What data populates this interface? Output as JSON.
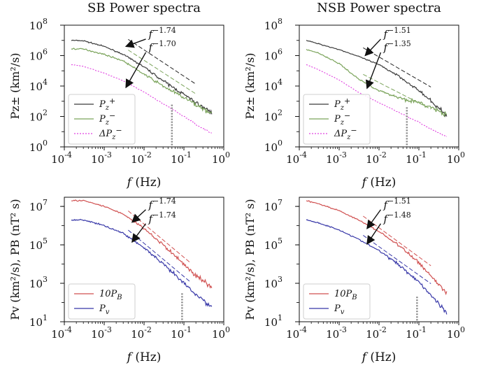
{
  "figure": {
    "colors": {
      "pplus": "#3a3a3a",
      "pminus": "#7aa35a",
      "dpminus": "#e040e0",
      "pb": "#d05050",
      "pv": "#3838a8",
      "axis": "#111111"
    }
  },
  "chart_data": [
    {
      "type": "line",
      "id": "sb-pz",
      "title": "SB Power spectra",
      "xlabel_var": "f",
      "xlabel_unit": "(Hz)",
      "ylabel": "Pz± (km²/s)",
      "xscale": "log",
      "yscale": "log",
      "xlim": [
        0.0001,
        1
      ],
      "ylim": [
        1,
        100000000
      ],
      "xticks": [
        {
          "exp": "-4",
          "value": 0.0001
        },
        {
          "exp": "-3",
          "value": 0.001
        },
        {
          "exp": "-2",
          "value": 0.01
        },
        {
          "exp": "-1",
          "value": 0.1
        },
        {
          "exp": "0",
          "value": 1
        }
      ],
      "yticks": [
        {
          "exp": "0",
          "value": 1
        },
        {
          "exp": "2",
          "value": 100
        },
        {
          "exp": "4",
          "value": 10000
        },
        {
          "exp": "6",
          "value": 1000000
        },
        {
          "exp": "8",
          "value": 100000000
        }
      ],
      "legend": {
        "location": "lower-left",
        "entries": [
          {
            "series": "P_z+",
            "base": "P",
            "sub": "z",
            "sup": "+"
          },
          {
            "series": "P_z-",
            "base": "P",
            "sub": "z",
            "sup": "−"
          },
          {
            "series": "dP_z-",
            "base": "ΔP",
            "sub": "z",
            "sup": "−"
          }
        ]
      },
      "series": [
        {
          "name": "P_z+",
          "style": "solid",
          "color_key": "pplus",
          "noise": 0.07,
          "x": [
            0.00015,
            0.0003,
            0.001,
            0.003,
            0.01,
            0.03,
            0.1,
            0.2,
            0.5
          ],
          "y": [
            10000000,
            9500000,
            4000000,
            1200000,
            180000,
            22000,
            2800,
            800,
            180
          ]
        },
        {
          "name": "P_z-",
          "style": "solid",
          "color_key": "pminus",
          "noise": 0.08,
          "x": [
            0.00015,
            0.0003,
            0.001,
            0.003,
            0.01,
            0.03,
            0.1,
            0.2,
            0.5
          ],
          "y": [
            2800000,
            2700000,
            1200000,
            450000,
            60000,
            10000,
            1700,
            600,
            150
          ]
        },
        {
          "name": "dP_z-",
          "style": "dotted",
          "color_key": "dpminus",
          "noise": 0.03,
          "x": [
            0.00015,
            0.0003,
            0.001,
            0.003,
            0.01,
            0.03,
            0.1,
            0.2,
            0.5
          ],
          "y": [
            250000,
            200000,
            70000,
            22000,
            4000,
            700,
            100,
            30,
            8
          ]
        }
      ],
      "fits": [
        {
          "label": "f",
          "exponent": "−1.74",
          "slope": -1.74,
          "x": [
            0.004,
            0.2
          ],
          "y": [
            5000000,
            5700
          ],
          "color_key": "pplus"
        },
        {
          "label": "f",
          "exponent": "−1.70",
          "slope": -1.7,
          "x": [
            0.004,
            0.2
          ],
          "y": [
            1000000,
            1300
          ],
          "color_key": "pminus"
        }
      ],
      "fits_panel": {
        "arrows": [
          {
            "text_x": 0.013,
            "text_y": 15000000,
            "tip_x": 0.0035,
            "tip_y": 4000000
          },
          {
            "text_x": 0.013,
            "text_y": 2000000,
            "tip_x": 0.0035,
            "tip_y": 8000
          }
        ]
      },
      "cutoff_marker": {
        "x": 0.05,
        "y_top": 600,
        "y_bottom": 1
      }
    },
    {
      "type": "line",
      "id": "nsb-pz",
      "title": "NSB Power spectra",
      "xlabel_var": "f",
      "xlabel_unit": "(Hz)",
      "ylabel": "Pz± (km²/s)",
      "xscale": "log",
      "yscale": "log",
      "xlim": [
        0.0001,
        1
      ],
      "ylim": [
        1,
        100000000
      ],
      "xticks": [
        {
          "exp": "-4",
          "value": 0.0001
        },
        {
          "exp": "-3",
          "value": 0.001
        },
        {
          "exp": "-2",
          "value": 0.01
        },
        {
          "exp": "-1",
          "value": 0.1
        },
        {
          "exp": "0",
          "value": 1
        }
      ],
      "yticks": [
        {
          "exp": "0",
          "value": 1
        },
        {
          "exp": "2",
          "value": 100
        },
        {
          "exp": "4",
          "value": 10000
        },
        {
          "exp": "6",
          "value": 1000000
        },
        {
          "exp": "8",
          "value": 100000000
        }
      ],
      "legend": {
        "location": "lower-left",
        "entries": [
          {
            "series": "P_z+",
            "base": "P",
            "sub": "z",
            "sup": "+"
          },
          {
            "series": "P_z-",
            "base": "P",
            "sub": "z",
            "sup": "−"
          },
          {
            "series": "dP_z-",
            "base": "ΔP",
            "sub": "z",
            "sup": "−"
          }
        ]
      },
      "series": [
        {
          "name": "P_z+",
          "style": "solid",
          "color_key": "pplus",
          "noise": 0.06,
          "x": [
            0.00015,
            0.0003,
            0.001,
            0.003,
            0.01,
            0.03,
            0.1,
            0.2,
            0.5
          ],
          "y": [
            10000000,
            6000000,
            2500000,
            900000,
            250000,
            50000,
            5000,
            1000,
            120
          ]
        },
        {
          "name": "P_z-",
          "style": "solid",
          "color_key": "pminus",
          "noise": 0.08,
          "x": [
            0.00015,
            0.0003,
            0.001,
            0.003,
            0.01,
            0.03,
            0.1,
            0.2,
            0.5
          ],
          "y": [
            2500000,
            1500000,
            300000,
            30000,
            5000,
            1800,
            800,
            400,
            120
          ]
        },
        {
          "name": "dP_z-",
          "style": "dotted",
          "color_key": "dpminus",
          "noise": 0.03,
          "x": [
            0.00015,
            0.0003,
            0.001,
            0.003,
            0.01,
            0.03,
            0.1,
            0.2,
            0.5
          ],
          "y": [
            250000,
            120000,
            25000,
            4000,
            800,
            200,
            40,
            15,
            5
          ]
        }
      ],
      "fits": [
        {
          "label": "f",
          "exponent": "−1.51",
          "slope": -1.51,
          "x": [
            0.004,
            0.2
          ],
          "y": [
            1400000,
            3700
          ],
          "color_key": "pplus"
        },
        {
          "label": "f",
          "exponent": "−1.35",
          "slope": -1.35,
          "x": [
            0.004,
            0.2
          ],
          "y": [
            25000,
            130
          ],
          "color_key": "pminus"
        }
      ],
      "fits_panel": {
        "arrows": [
          {
            "text_x": 0.013,
            "text_y": 15000000,
            "tip_x": 0.0045,
            "tip_y": 1000000
          },
          {
            "text_x": 0.013,
            "text_y": 2000000,
            "tip_x": 0.005,
            "tip_y": 7000
          }
        ]
      },
      "cutoff_marker": {
        "x": 0.05,
        "y_top": 400,
        "y_bottom": 1
      }
    },
    {
      "type": "line",
      "id": "sb-pv",
      "title": "",
      "xlabel_var": "f",
      "xlabel_unit": "(Hz)",
      "ylabel": "Pv (km²/s), PB (nT² s)",
      "xscale": "log",
      "yscale": "log",
      "xlim": [
        0.0001,
        1
      ],
      "ylim": [
        10,
        30000000
      ],
      "xticks": [
        {
          "exp": "-4",
          "value": 0.0001
        },
        {
          "exp": "-3",
          "value": 0.001
        },
        {
          "exp": "-2",
          "value": 0.01
        },
        {
          "exp": "-1",
          "value": 0.1
        },
        {
          "exp": "0",
          "value": 1
        }
      ],
      "yticks": [
        {
          "exp": "1",
          "value": 10
        },
        {
          "exp": "3",
          "value": 1000
        },
        {
          "exp": "5",
          "value": 100000
        },
        {
          "exp": "7",
          "value": 10000000
        }
      ],
      "legend": {
        "location": "lower-left",
        "entries": [
          {
            "series": "10P_B",
            "base": "10P",
            "sub": "B",
            "sup": ""
          },
          {
            "series": "P_v",
            "base": "P",
            "sub": "v",
            "sup": ""
          }
        ]
      },
      "series": [
        {
          "name": "10P_B",
          "style": "solid",
          "color_key": "pb",
          "noise": 0.07,
          "x": [
            0.00015,
            0.0003,
            0.001,
            0.003,
            0.01,
            0.03,
            0.1,
            0.2,
            0.5
          ],
          "y": [
            20000000,
            20000000,
            10000000,
            4000000,
            700000,
            100000,
            10000,
            2500,
            600
          ]
        },
        {
          "name": "P_v",
          "style": "solid",
          "color_key": "pv",
          "noise": 0.07,
          "x": [
            0.00015,
            0.0003,
            0.001,
            0.003,
            0.01,
            0.03,
            0.1,
            0.2,
            0.5
          ],
          "y": [
            2000000,
            2000000,
            1000000,
            400000,
            70000,
            10000,
            1000,
            250,
            60
          ]
        }
      ],
      "fits": [
        {
          "label": "f",
          "exponent": "−1.74",
          "slope": -1.74,
          "x": [
            0.004,
            0.15
          ],
          "y": [
            3000000,
            5700
          ],
          "color_key": "pb"
        },
        {
          "label": "f",
          "exponent": "−1.74",
          "slope": -1.74,
          "x": [
            0.004,
            0.15
          ],
          "y": [
            300000,
            570
          ],
          "color_key": "pv"
        }
      ],
      "fits_panel": {
        "arrows": [
          {
            "text_x": 0.013,
            "text_y": 8000000,
            "tip_x": 0.005,
            "tip_y": 1500000
          },
          {
            "text_x": 0.013,
            "text_y": 1500000,
            "tip_x": 0.005,
            "tip_y": 140000
          }
        ]
      },
      "cutoff_marker": {
        "x": 0.09,
        "y_top": 300,
        "y_bottom": 10
      }
    },
    {
      "type": "line",
      "id": "nsb-pv",
      "title": "",
      "xlabel_var": "f",
      "xlabel_unit": "(Hz)",
      "ylabel": "Pv (km²/s), PB (nT² s)",
      "xscale": "log",
      "yscale": "log",
      "xlim": [
        0.0001,
        1
      ],
      "ylim": [
        10,
        30000000
      ],
      "xticks": [
        {
          "exp": "-4",
          "value": 0.0001
        },
        {
          "exp": "-3",
          "value": 0.001
        },
        {
          "exp": "-2",
          "value": 0.01
        },
        {
          "exp": "-1",
          "value": 0.1
        },
        {
          "exp": "0",
          "value": 1
        }
      ],
      "yticks": [
        {
          "exp": "1",
          "value": 10
        },
        {
          "exp": "3",
          "value": 1000
        },
        {
          "exp": "5",
          "value": 100000
        },
        {
          "exp": "7",
          "value": 10000000
        }
      ],
      "legend": {
        "location": "lower-left",
        "entries": [
          {
            "series": "10P_B",
            "base": "10P",
            "sub": "B",
            "sup": ""
          },
          {
            "series": "P_v",
            "base": "P",
            "sub": "v",
            "sup": ""
          }
        ]
      },
      "series": [
        {
          "name": "10P_B",
          "style": "solid",
          "color_key": "pb",
          "noise": 0.06,
          "x": [
            0.00015,
            0.0003,
            0.001,
            0.003,
            0.01,
            0.03,
            0.1,
            0.2,
            0.5
          ],
          "y": [
            20000000,
            14000000,
            6000000,
            2000000,
            500000,
            100000,
            12000,
            2500,
            300
          ]
        },
        {
          "name": "P_v",
          "style": "solid",
          "color_key": "pv",
          "noise": 0.06,
          "x": [
            0.00015,
            0.0003,
            0.001,
            0.003,
            0.01,
            0.03,
            0.1,
            0.2,
            0.5
          ],
          "y": [
            2000000,
            1400000,
            600000,
            200000,
            50000,
            10000,
            1200,
            250,
            30
          ]
        }
      ],
      "fits": [
        {
          "label": "f",
          "exponent": "−1.51",
          "slope": -1.51,
          "x": [
            0.004,
            0.2
          ],
          "y": [
            1600000,
            4200
          ],
          "color_key": "pb"
        },
        {
          "label": "f",
          "exponent": "−1.48",
          "slope": -1.48,
          "x": [
            0.004,
            0.2
          ],
          "y": [
            160000,
            490
          ],
          "color_key": "pv"
        }
      ],
      "fits_panel": {
        "arrows": [
          {
            "text_x": 0.013,
            "text_y": 8000000,
            "tip_x": 0.005,
            "tip_y": 700000
          },
          {
            "text_x": 0.013,
            "text_y": 1500000,
            "tip_x": 0.005,
            "tip_y": 110000
          }
        ]
      },
      "cutoff_marker": {
        "x": 0.09,
        "y_top": 200,
        "y_bottom": 10
      }
    }
  ]
}
